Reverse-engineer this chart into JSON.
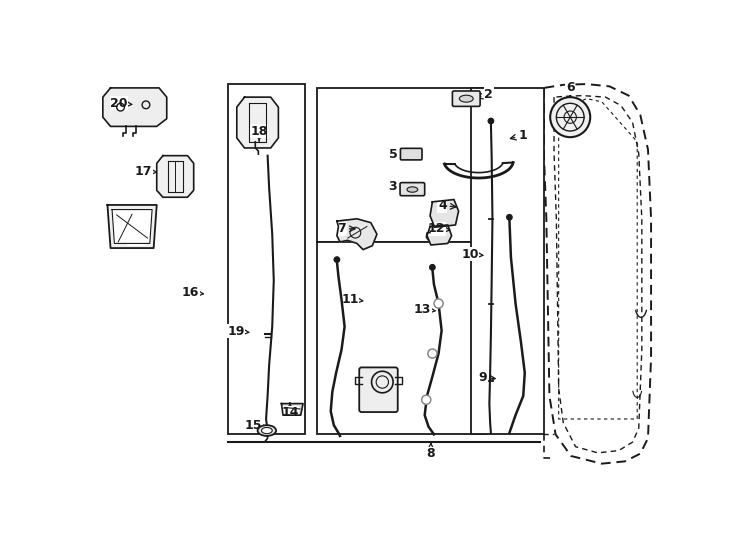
{
  "bg_color": "#ffffff",
  "line_color": "#1a1a1a",
  "figsize": [
    7.34,
    5.4
  ],
  "dpi": 100,
  "labels": {
    "1": [
      536,
      97,
      557,
      92
    ],
    "2": [
      493,
      45,
      513,
      38
    ],
    "3": [
      411,
      158,
      388,
      158
    ],
    "4": [
      476,
      185,
      453,
      183
    ],
    "5": [
      413,
      118,
      389,
      116
    ],
    "6": [
      619,
      42,
      619,
      30
    ],
    "7": [
      345,
      213,
      322,
      213
    ],
    "8": [
      438,
      490,
      438,
      505
    ],
    "9": [
      527,
      408,
      505,
      406
    ],
    "10": [
      511,
      248,
      489,
      246
    ],
    "11": [
      355,
      307,
      333,
      305
    ],
    "12": [
      468,
      215,
      445,
      213
    ],
    "13": [
      449,
      320,
      427,
      318
    ],
    "14": [
      255,
      435,
      255,
      452
    ],
    "15": [
      230,
      471,
      208,
      469
    ],
    "16": [
      148,
      298,
      126,
      296
    ],
    "17": [
      87,
      140,
      65,
      138
    ],
    "18": [
      215,
      103,
      215,
      86
    ],
    "19": [
      207,
      348,
      185,
      346
    ],
    "20": [
      55,
      52,
      33,
      50
    ],
    "21": [
      55,
      208,
      55,
      226
    ]
  }
}
